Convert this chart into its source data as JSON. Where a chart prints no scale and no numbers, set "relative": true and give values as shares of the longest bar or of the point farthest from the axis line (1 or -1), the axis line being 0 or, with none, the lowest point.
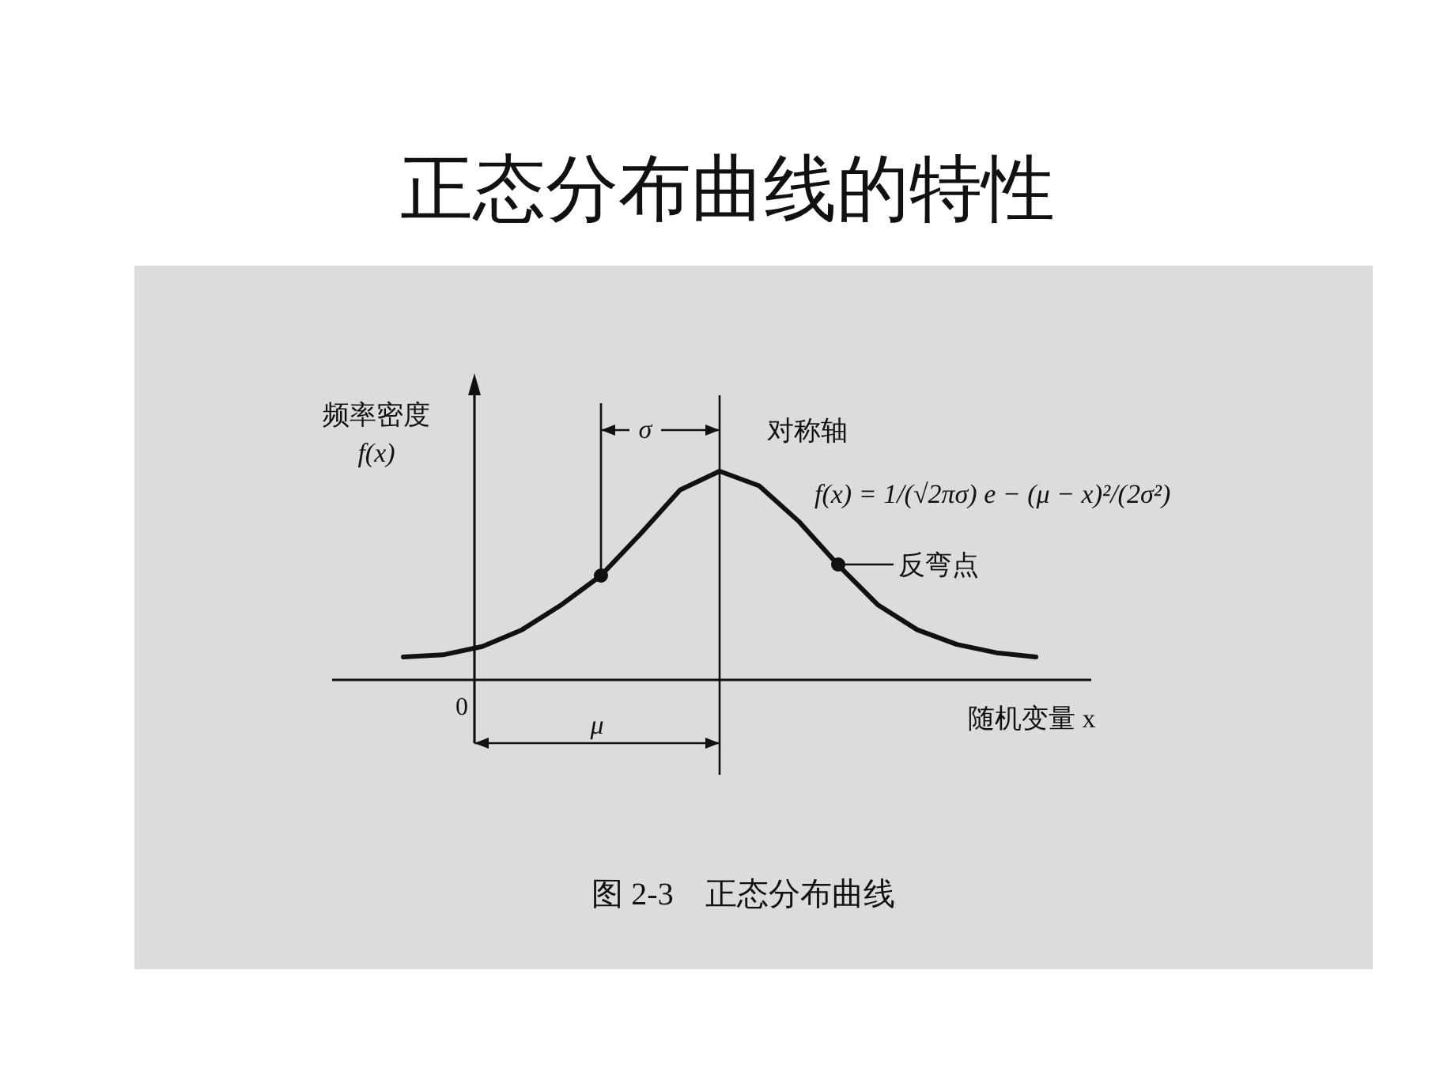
{
  "chart_data": {
    "type": "line",
    "title": "正态分布曲线的特性",
    "relative": true,
    "xlabel": "随机变量 x",
    "ylabel": "频率密度 f(x)",
    "categories": [
      null,
      null,
      null,
      null,
      null,
      null,
      null,
      null,
      null,
      null,
      null,
      null,
      null,
      null,
      null,
      null,
      null
    ],
    "series": [
      {
        "color": "#111111",
        "values": [
          0.11,
          0.12,
          0.16,
          0.24,
          0.36,
          0.5,
          0.7,
          0.91,
          1,
          0.93,
          0.76,
          0.55,
          0.36,
          0.24,
          0.17,
          0.13,
          0.11
        ]
      }
    ],
    "annotations": [
      "0",
      "μ",
      "σ",
      "f(x) = 1/(√2πσ) e − (μ − x)²/(2σ²)",
      "反弯点",
      "图 2-3　正态分布曲线",
      "对称轴"
    ]
  }
}
